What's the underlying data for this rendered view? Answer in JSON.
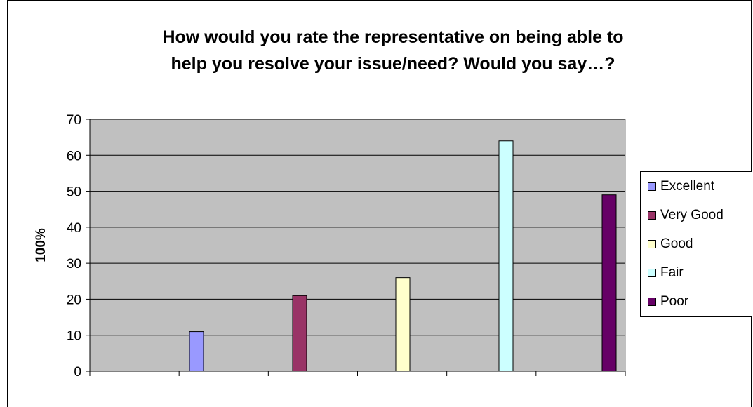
{
  "chart_data": {
    "type": "bar",
    "title_lines": [
      "How would you rate the representative on being able to",
      "help you resolve your issue/need? Would you say…?"
    ],
    "ylabel": "100%",
    "xlabel": "",
    "ylim": [
      0,
      70
    ],
    "yticks": [
      0,
      10,
      20,
      30,
      40,
      50,
      60,
      70
    ],
    "grid": true,
    "legend_position": "right",
    "plot_background": "#c0c0c0",
    "series": [
      {
        "name": "Excellent",
        "value": 11,
        "color": "#9999ff"
      },
      {
        "name": "Very Good",
        "value": 21,
        "color": "#993366"
      },
      {
        "name": "Good",
        "value": 26,
        "color": "#ffffcc"
      },
      {
        "name": "Fair",
        "value": 64,
        "color": "#ccffff"
      },
      {
        "name": "Poor",
        "value": 49,
        "color": "#660066"
      }
    ]
  }
}
